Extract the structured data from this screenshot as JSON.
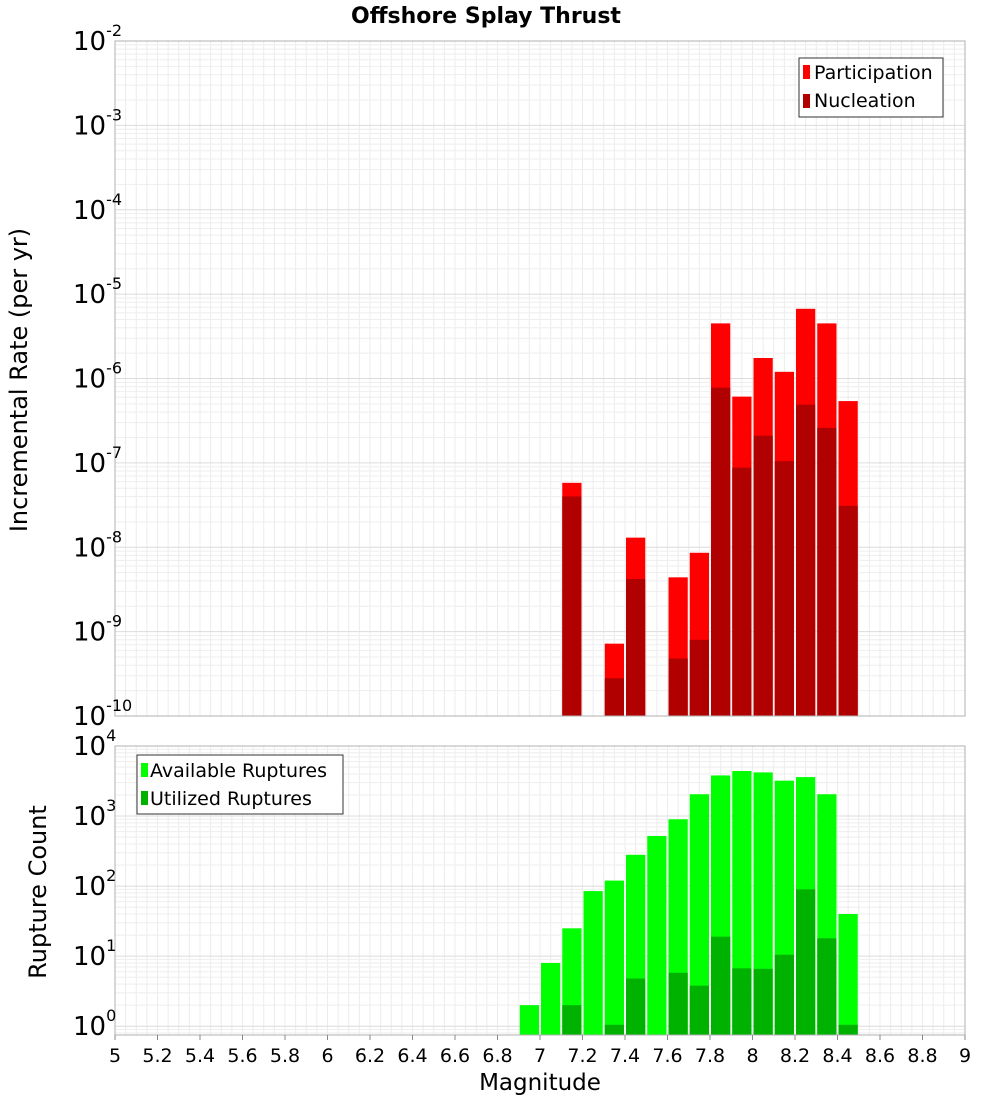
{
  "chart_data": [
    {
      "type": "bar",
      "title": "Offshore Splay Thrust",
      "xlabel": "",
      "ylabel": "Incremental Rate (per yr)",
      "yscale": "log",
      "ylim": [
        1e-10,
        0.01
      ],
      "xlim": [
        5,
        9
      ],
      "y_ticks": [
        {
          "base": "10",
          "exp": "-2",
          "value": 0.01
        },
        {
          "base": "10",
          "exp": "-3",
          "value": 0.001
        },
        {
          "base": "10",
          "exp": "-4",
          "value": 0.0001
        },
        {
          "base": "10",
          "exp": "-5",
          "value": 1e-05
        },
        {
          "base": "10",
          "exp": "-6",
          "value": 1e-06
        },
        {
          "base": "10",
          "exp": "-7",
          "value": 1e-07
        },
        {
          "base": "10",
          "exp": "-8",
          "value": 1e-08
        },
        {
          "base": "10",
          "exp": "-9",
          "value": 1e-09
        },
        {
          "base": "10",
          "exp": "-10",
          "value": 1e-10
        }
      ],
      "legend": {
        "placement": "top-right"
      },
      "series": [
        {
          "name": "Participation",
          "color": "#ff0000",
          "points": [
            {
              "x": 7.15,
              "y": 5.8e-08
            },
            {
              "x": 7.35,
              "y": 7.2e-10
            },
            {
              "x": 7.45,
              "y": 1.3e-08
            },
            {
              "x": 7.65,
              "y": 4.4e-09
            },
            {
              "x": 7.75,
              "y": 8.6e-09
            },
            {
              "x": 7.85,
              "y": 4.5e-06
            },
            {
              "x": 7.95,
              "y": 6.1e-07
            },
            {
              "x": 8.05,
              "y": 1.75e-06
            },
            {
              "x": 8.15,
              "y": 1.2e-06
            },
            {
              "x": 8.25,
              "y": 6.7e-06
            },
            {
              "x": 8.35,
              "y": 4.5e-06
            },
            {
              "x": 8.45,
              "y": 5.4e-07
            }
          ]
        },
        {
          "name": "Nucleation",
          "color": "#b00000",
          "points": [
            {
              "x": 7.15,
              "y": 4e-08
            },
            {
              "x": 7.35,
              "y": 2.8e-10
            },
            {
              "x": 7.45,
              "y": 4.2e-09
            },
            {
              "x": 7.65,
              "y": 4.8e-10
            },
            {
              "x": 7.75,
              "y": 8e-10
            },
            {
              "x": 7.85,
              "y": 7.8e-07
            },
            {
              "x": 7.95,
              "y": 8.8e-08
            },
            {
              "x": 8.05,
              "y": 2.1e-07
            },
            {
              "x": 8.15,
              "y": 1.05e-07
            },
            {
              "x": 8.25,
              "y": 4.9e-07
            },
            {
              "x": 8.35,
              "y": 2.6e-07
            },
            {
              "x": 8.45,
              "y": 3.1e-08
            }
          ]
        }
      ]
    },
    {
      "type": "bar",
      "title": "",
      "xlabel": "Magnitude",
      "ylabel": "Rupture Count",
      "yscale": "log",
      "ylim": [
        0.75,
        10000.0
      ],
      "xlim": [
        5,
        9
      ],
      "x_ticks": [
        "5",
        "5.2",
        "5.4",
        "5.6",
        "5.8",
        "6",
        "6.2",
        "6.4",
        "6.6",
        "6.8",
        "7",
        "7.2",
        "7.4",
        "7.6",
        "7.8",
        "8",
        "8.2",
        "8.4",
        "8.6",
        "8.8",
        "9"
      ],
      "y_ticks": [
        {
          "base": "10",
          "exp": "4",
          "value": 10000.0
        },
        {
          "base": "10",
          "exp": "3",
          "value": 1000.0
        },
        {
          "base": "10",
          "exp": "2",
          "value": 100.0
        },
        {
          "base": "10",
          "exp": "1",
          "value": 10.0
        },
        {
          "base": "10",
          "exp": "0",
          "value": 1
        }
      ],
      "legend": {
        "placement": "top-left"
      },
      "series": [
        {
          "name": "Available Ruptures",
          "color": "#00ff00",
          "points": [
            {
              "x": 6.95,
              "y": 2
            },
            {
              "x": 7.05,
              "y": 8
            },
            {
              "x": 7.15,
              "y": 25
            },
            {
              "x": 7.25,
              "y": 85
            },
            {
              "x": 7.35,
              "y": 120
            },
            {
              "x": 7.45,
              "y": 280
            },
            {
              "x": 7.55,
              "y": 520
            },
            {
              "x": 7.65,
              "y": 900
            },
            {
              "x": 7.75,
              "y": 2050
            },
            {
              "x": 7.85,
              "y": 3800
            },
            {
              "x": 7.95,
              "y": 4400
            },
            {
              "x": 8.05,
              "y": 4200
            },
            {
              "x": 8.15,
              "y": 3200
            },
            {
              "x": 8.25,
              "y": 3600
            },
            {
              "x": 8.35,
              "y": 2050
            },
            {
              "x": 8.45,
              "y": 40
            }
          ]
        },
        {
          "name": "Utilized Ruptures",
          "color": "#00b200",
          "points": [
            {
              "x": 7.15,
              "y": 2
            },
            {
              "x": 7.35,
              "y": 1.05
            },
            {
              "x": 7.45,
              "y": 4.8
            },
            {
              "x": 7.65,
              "y": 5.8
            },
            {
              "x": 7.75,
              "y": 3.8
            },
            {
              "x": 7.85,
              "y": 19
            },
            {
              "x": 7.95,
              "y": 6.7
            },
            {
              "x": 8.05,
              "y": 6.6
            },
            {
              "x": 8.15,
              "y": 10.5
            },
            {
              "x": 8.25,
              "y": 90
            },
            {
              "x": 8.35,
              "y": 18
            },
            {
              "x": 8.45,
              "y": 1.05
            }
          ]
        }
      ]
    }
  ]
}
